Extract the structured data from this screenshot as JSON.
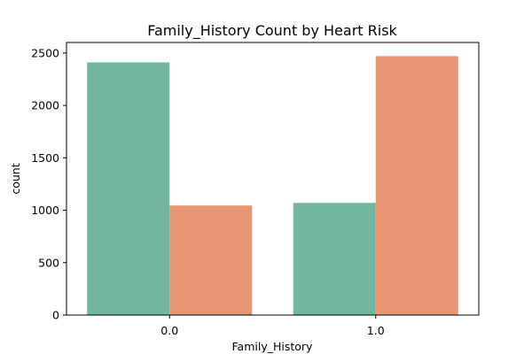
{
  "chart_data": {
    "type": "bar",
    "title": "Family_History Count by Heart Risk",
    "xlabel": "Family_History",
    "ylabel": "count",
    "categories": [
      "0.0",
      "1.0"
    ],
    "series": [
      {
        "values": [
          2410,
          1070
        ],
        "color": "#72b6a1"
      },
      {
        "values": [
          1045,
          2470
        ],
        "color": "#e99675"
      }
    ],
    "ylim": [
      0,
      2600
    ],
    "yticks": [
      0,
      500,
      1000,
      1500,
      2000,
      2500
    ],
    "grid": false,
    "legend": "none"
  }
}
